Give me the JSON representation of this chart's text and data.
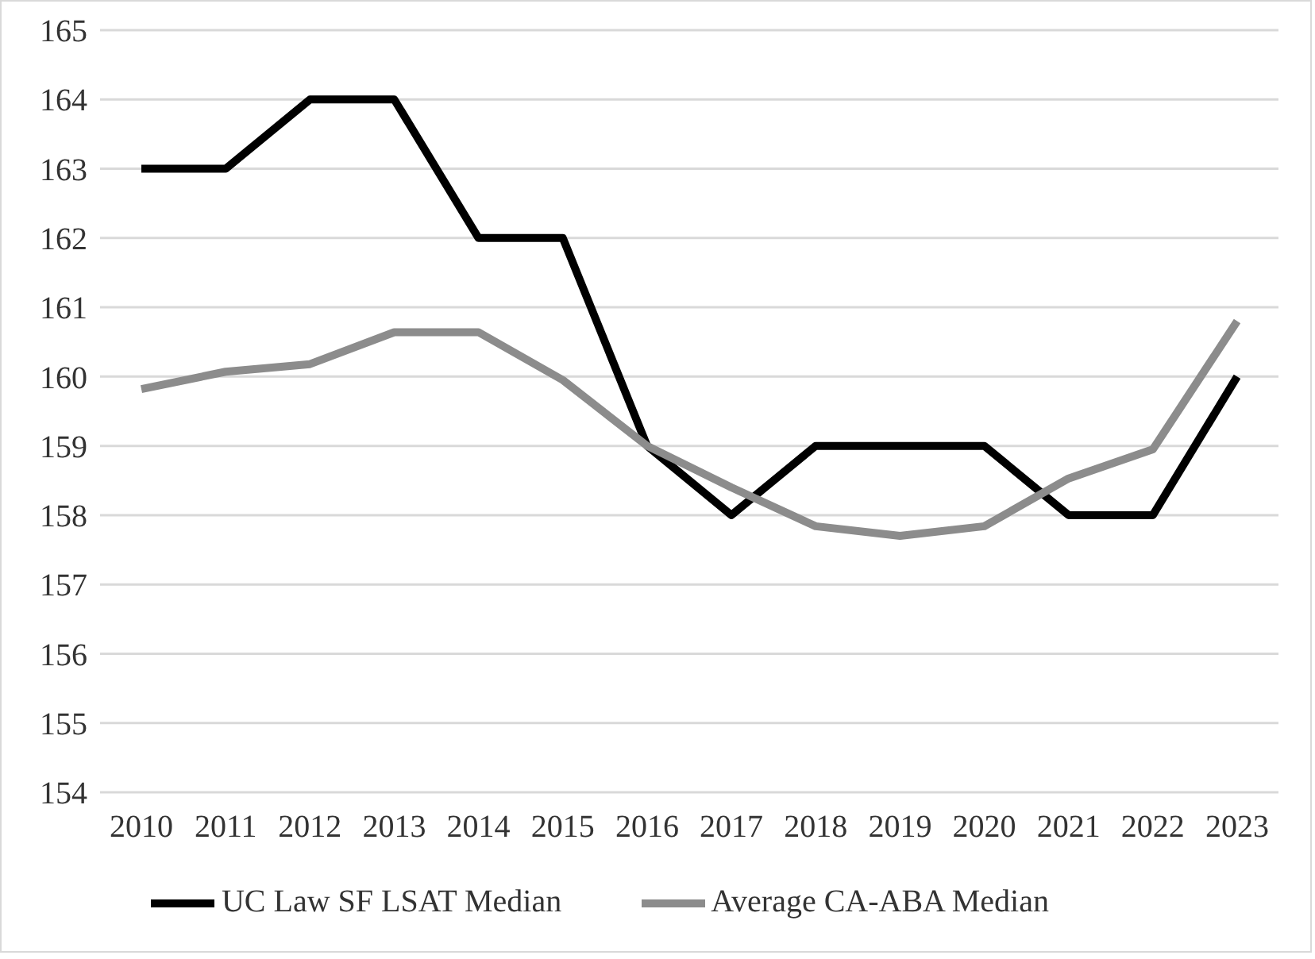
{
  "chart_data": {
    "type": "line",
    "categories": [
      "2010",
      "2011",
      "2012",
      "2013",
      "2014",
      "2015",
      "2016",
      "2017",
      "2018",
      "2019",
      "2020",
      "2021",
      "2022",
      "2023"
    ],
    "series": [
      {
        "name": "UC Law SF LSAT Median",
        "color": "#000000",
        "values": [
          163,
          163,
          164,
          164,
          162,
          162,
          159,
          158,
          159,
          159,
          159,
          158,
          158,
          160
        ]
      },
      {
        "name": "Average CA-ABA Median",
        "color": "#8c8c8c",
        "values": [
          159.82,
          160.07,
          160.18,
          160.64,
          160.64,
          159.95,
          159.0,
          158.4,
          157.84,
          157.7,
          157.84,
          158.53,
          158.95,
          160.8
        ]
      }
    ],
    "ylim": [
      154,
      165
    ],
    "yticks": [
      154,
      155,
      156,
      157,
      158,
      159,
      160,
      161,
      162,
      163,
      164,
      165
    ],
    "grid": "y",
    "legend": "bottom",
    "marker": "none",
    "line_style": "solid"
  }
}
